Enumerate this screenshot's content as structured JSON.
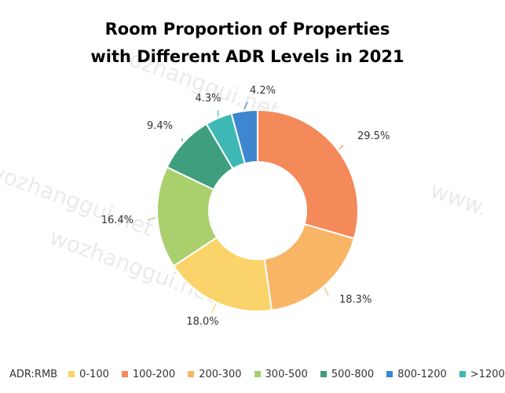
{
  "title_lines": [
    "Room Proportion of Properties",
    "with Different ADR Levels in 2021"
  ],
  "watermarks": [
    "wozhanggui.net",
    "wozhanggui.net",
    "www.",
    "wozhanggui.net"
  ],
  "chart_data": {
    "type": "pie",
    "style": "donut",
    "title": "Room Proportion of Properties with Different ADR Levels in 2021",
    "legend_title": "ADR:RMB",
    "legend_position": "bottom",
    "order": [
      "100-200",
      "200-300",
      "0-100",
      "300-500",
      "500-800",
      "800-1200",
      ">1200"
    ],
    "slices": [
      {
        "label": "100-200",
        "value": 29.5,
        "display": "29.5%",
        "color": "#F4895A"
      },
      {
        "label": "200-300",
        "value": 18.3,
        "display": "18.3%",
        "color": "#F8B565"
      },
      {
        "label": "0-100",
        "value": 18.0,
        "display": "18.0%",
        "color": "#FAD46A"
      },
      {
        "label": "300-500",
        "value": 16.4,
        "display": "16.4%",
        "color": "#A9D06D"
      },
      {
        "label": "500-800",
        "value": 9.4,
        "display": "9.4%",
        "color": "#3F9E7E"
      },
      {
        "label": ">1200",
        "value": 4.3,
        "display": "4.3%",
        "color": "#3DB8B4"
      },
      {
        "label": "800-1200",
        "value": 4.2,
        "display": "4.2%",
        "color": "#3E86CF"
      }
    ],
    "legend": [
      {
        "label": "0-100",
        "color": "#FAD46A"
      },
      {
        "label": "100-200",
        "color": "#F4895A"
      },
      {
        "label": "200-300",
        "color": "#F8B565"
      },
      {
        "label": "300-500",
        "color": "#A9D06D"
      },
      {
        "label": "500-800",
        "color": "#3F9E7E"
      },
      {
        "label": "800-1200",
        "color": "#3E86CF"
      },
      {
        "label": ">1200",
        "color": "#3DB8B4"
      }
    ]
  }
}
